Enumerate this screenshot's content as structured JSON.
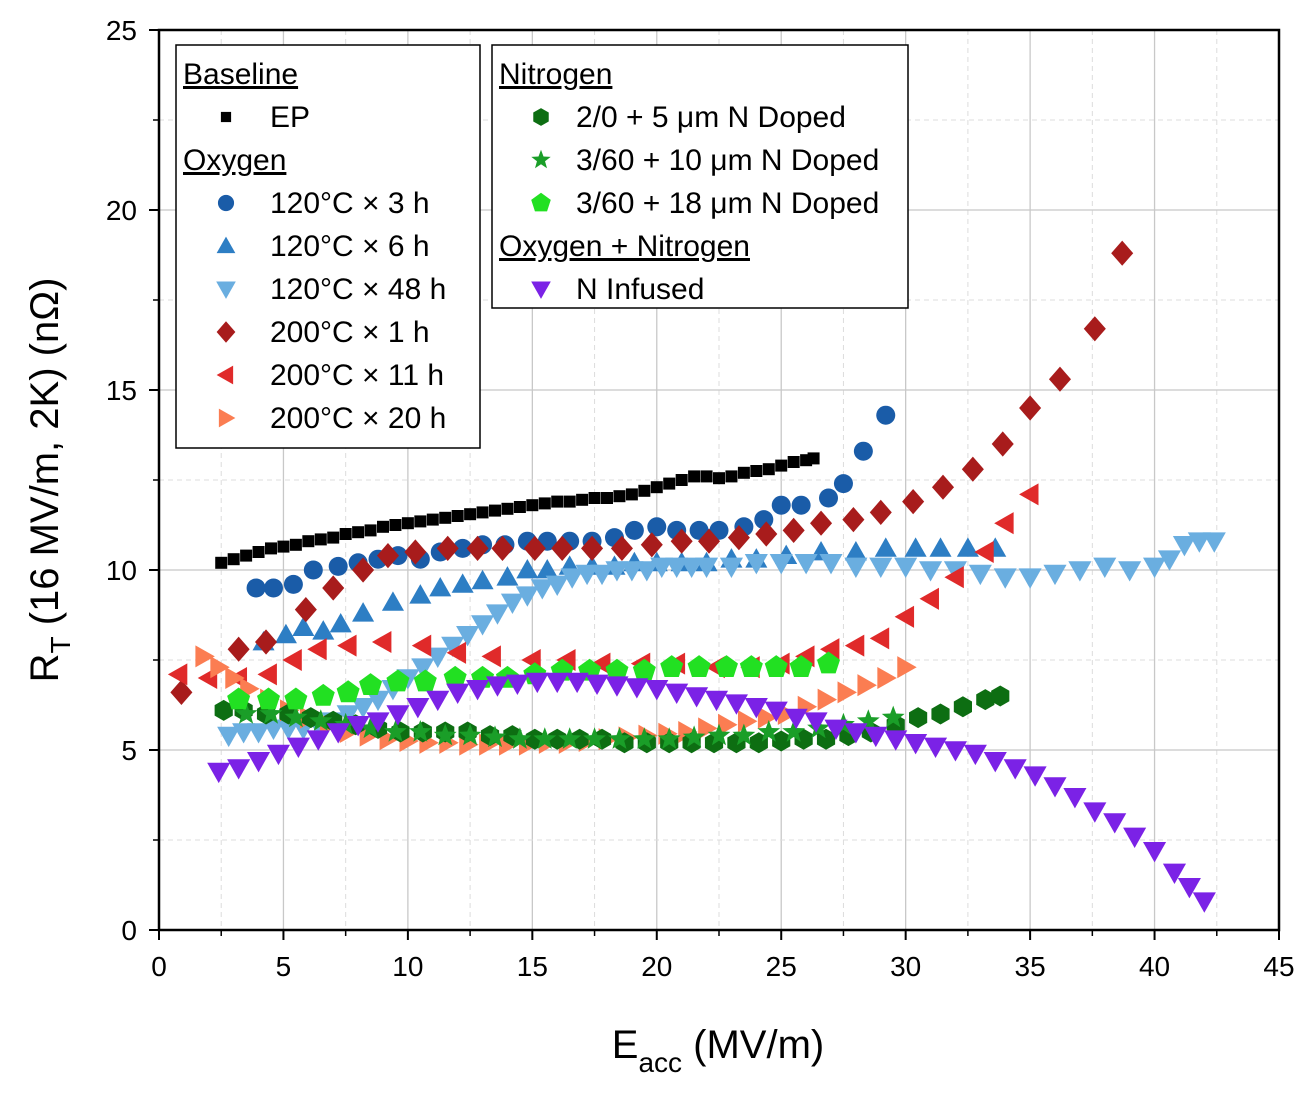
{
  "chart_data": {
    "type": "scatter",
    "xlabel_main": "E",
    "xlabel_sub": "acc",
    "xlabel_unit": " (MV/m)",
    "ylabel_main": "R",
    "ylabel_sub": "T",
    "ylabel_unit": " (16 MV/m, 2K) (nΩ)",
    "xlim": [
      0,
      45
    ],
    "ylim": [
      0,
      25
    ],
    "xticks": [
      0,
      5,
      10,
      15,
      20,
      25,
      30,
      35,
      40,
      45
    ],
    "yticks": [
      0,
      5,
      10,
      15,
      20,
      25
    ],
    "grid": true,
    "legend_groups": [
      {
        "heading": "Baseline",
        "entries": [
          "EP"
        ]
      },
      {
        "heading": "Oxygen",
        "entries": [
          "120°C × 3 h",
          "120°C × 6 h",
          "120°C × 48 h",
          "200°C × 1 h",
          "200°C × 11 h",
          "200°C × 20 h"
        ]
      },
      {
        "heading": "Nitrogen",
        "entries": [
          "2/0 + 5 μm N Doped",
          "3/60 + 10 μm N Doped",
          "3/60 + 18 μm N Doped"
        ]
      },
      {
        "heading": "Oxygen + Nitrogen",
        "entries": [
          "N Infused"
        ]
      }
    ],
    "series": [
      {
        "name": "EP",
        "marker": "square",
        "color": "#000000",
        "x": [
          2.5,
          3,
          3.5,
          4,
          4.5,
          5,
          5.5,
          6,
          6.5,
          7,
          7.5,
          8,
          8.5,
          9,
          9.5,
          10,
          10.5,
          11,
          11.5,
          12,
          12.5,
          13,
          13.5,
          14,
          14.5,
          15,
          15.5,
          16,
          16.5,
          17,
          17.5,
          18,
          18.5,
          19,
          19.5,
          20,
          20.5,
          21,
          21.5,
          22,
          22.5,
          23,
          23.5,
          24,
          24.5,
          25,
          25.5,
          26,
          26.3
        ],
        "y": [
          10.2,
          10.3,
          10.4,
          10.5,
          10.6,
          10.65,
          10.7,
          10.8,
          10.85,
          10.9,
          11.0,
          11.05,
          11.1,
          11.2,
          11.25,
          11.3,
          11.35,
          11.4,
          11.45,
          11.5,
          11.55,
          11.6,
          11.65,
          11.7,
          11.75,
          11.8,
          11.85,
          11.9,
          11.9,
          11.95,
          12.0,
          12.0,
          12.05,
          12.1,
          12.2,
          12.3,
          12.4,
          12.5,
          12.6,
          12.6,
          12.55,
          12.6,
          12.7,
          12.75,
          12.8,
          12.9,
          13.0,
          13.05,
          13.1
        ]
      },
      {
        "name": "120°C × 3 h",
        "marker": "circle",
        "color": "#1a5ca8",
        "x": [
          3.9,
          4.6,
          5.4,
          6.2,
          7.2,
          8,
          8.8,
          9.6,
          10.5,
          11.3,
          12.2,
          13,
          13.9,
          14.8,
          15.6,
          16.5,
          17.4,
          18.3,
          19.1,
          20,
          20.8,
          21.7,
          22.5,
          23.5,
          24.3,
          25,
          25.8,
          26.9,
          27.5,
          28.3,
          29.2
        ],
        "y": [
          9.5,
          9.5,
          9.6,
          10.0,
          10.1,
          10.2,
          10.3,
          10.4,
          10.3,
          10.5,
          10.6,
          10.7,
          10.7,
          10.8,
          10.8,
          10.8,
          10.8,
          10.9,
          11.1,
          11.2,
          11.1,
          11.1,
          11.1,
          11.2,
          11.4,
          11.8,
          11.8,
          12.0,
          12.4,
          13.3,
          14.3
        ]
      },
      {
        "name": "120°C × 6 h",
        "marker": "triangle-up",
        "color": "#2d7ec4",
        "x": [
          4.2,
          5.1,
          5.8,
          6.6,
          7.3,
          8.2,
          9.4,
          10.5,
          11.3,
          12.2,
          13,
          14,
          14.8,
          15.6,
          16.5,
          17.4,
          18.3,
          19.1,
          20,
          21,
          22,
          23,
          24,
          25.2,
          26.6,
          28,
          29.2,
          30.4,
          31.4,
          32.5,
          33.6
        ],
        "y": [
          8.0,
          8.2,
          8.4,
          8.3,
          8.5,
          8.8,
          9.1,
          9.3,
          9.5,
          9.6,
          9.7,
          9.8,
          10.0,
          10.0,
          10.1,
          10.1,
          10.1,
          10.2,
          10.2,
          10.2,
          10.2,
          10.3,
          10.3,
          10.4,
          10.5,
          10.5,
          10.6,
          10.6,
          10.6,
          10.6,
          10.6
        ]
      },
      {
        "name": "120°C × 48 h",
        "marker": "triangle-down",
        "color": "#6aaee0",
        "x": [
          2.8,
          3.4,
          4,
          4.6,
          5.2,
          5.8,
          6.4,
          7,
          7.6,
          8.2,
          8.8,
          9.4,
          10,
          10.6,
          11.2,
          11.8,
          12.4,
          13,
          13.6,
          14.2,
          14.8,
          15.4,
          16,
          16.6,
          17.2,
          17.8,
          18.4,
          19,
          19.6,
          20.2,
          20.8,
          21.4,
          22,
          23,
          24,
          25,
          26,
          27,
          28,
          29,
          30,
          31,
          32,
          33,
          34,
          35,
          36,
          37,
          38,
          39,
          40,
          40.6,
          41.2,
          41.8,
          42.4
        ],
        "y": [
          5.4,
          5.5,
          5.5,
          5.6,
          5.6,
          5.6,
          5.7,
          5.8,
          6.0,
          6.2,
          6.4,
          6.7,
          7.0,
          7.3,
          7.6,
          7.9,
          8.2,
          8.5,
          8.8,
          9.1,
          9.3,
          9.5,
          9.6,
          9.8,
          9.9,
          9.9,
          10.0,
          10.0,
          10.0,
          10.1,
          10.1,
          10.1,
          10.1,
          10.1,
          10.2,
          10.2,
          10.2,
          10.2,
          10.1,
          10.1,
          10.1,
          10.0,
          10.0,
          9.9,
          9.8,
          9.8,
          9.9,
          10.0,
          10.1,
          10.0,
          10.1,
          10.3,
          10.7,
          10.8,
          10.8
        ]
      },
      {
        "name": "200°C × 1 h",
        "marker": "diamond",
        "color": "#a81c1c",
        "x": [
          0.9,
          3.2,
          4.3,
          5.9,
          7,
          8.2,
          9.2,
          10.3,
          11.6,
          12.8,
          13.8,
          15.1,
          16.2,
          17.4,
          18.6,
          19.8,
          21,
          22.1,
          23.3,
          24.4,
          25.5,
          26.6,
          27.9,
          29,
          30.3,
          31.5,
          32.7,
          33.9,
          35,
          36.2,
          37.6,
          38.7
        ],
        "y": [
          6.6,
          7.8,
          8.0,
          8.9,
          9.5,
          10.0,
          10.4,
          10.5,
          10.6,
          10.6,
          10.6,
          10.6,
          10.6,
          10.6,
          10.6,
          10.7,
          10.8,
          10.8,
          10.9,
          11.0,
          11.1,
          11.3,
          11.4,
          11.6,
          11.9,
          12.3,
          12.8,
          13.5,
          14.5,
          15.3,
          16.7,
          18.8
        ]
      },
      {
        "name": "200°C × 11 h",
        "marker": "triangle-left",
        "color": "#e02a2a",
        "x": [
          0.8,
          2,
          3.2,
          4.4,
          5.4,
          6.4,
          7.6,
          9,
          10.6,
          12,
          13.4,
          15,
          16.4,
          17.8,
          19.4,
          20.8,
          22.4,
          23.8,
          25,
          26,
          27,
          28,
          29,
          30,
          31,
          32,
          33.2,
          34,
          35
        ],
        "y": [
          7.1,
          7.0,
          7.0,
          7.1,
          7.5,
          7.8,
          7.9,
          8.0,
          7.9,
          7.7,
          7.6,
          7.5,
          7.5,
          7.4,
          7.4,
          7.4,
          7.3,
          7.3,
          7.4,
          7.6,
          7.8,
          7.9,
          8.1,
          8.7,
          9.2,
          9.8,
          10.5,
          11.3,
          12.1
        ]
      },
      {
        "name": "200°C × 20 h",
        "marker": "triangle-right",
        "color": "#fb7d52",
        "x": [
          1.8,
          2.4,
          3,
          3.6,
          4.4,
          5.2,
          6,
          6.8,
          7.6,
          8.4,
          9.2,
          10,
          10.8,
          11.6,
          12.4,
          13.2,
          14,
          14.8,
          15.6,
          16.4,
          17.2,
          18,
          18.8,
          19.6,
          20.4,
          21.2,
          22,
          22.8,
          23.6,
          24.4,
          25.2,
          26,
          26.8,
          27.6,
          28.4,
          29.2,
          30
        ],
        "y": [
          7.6,
          7.3,
          7.0,
          6.7,
          6.4,
          6.1,
          5.9,
          5.7,
          5.5,
          5.4,
          5.3,
          5.25,
          5.2,
          5.2,
          5.15,
          5.15,
          5.15,
          5.15,
          5.2,
          5.2,
          5.25,
          5.3,
          5.35,
          5.4,
          5.45,
          5.5,
          5.6,
          5.7,
          5.8,
          5.9,
          6.0,
          6.2,
          6.4,
          6.6,
          6.8,
          7.0,
          7.3
        ]
      },
      {
        "name": "2/0 + 5 μm N Doped",
        "marker": "hexagon",
        "color": "#0d6e12",
        "x": [
          2.6,
          3.4,
          4.3,
          5.2,
          6.1,
          7,
          7.9,
          8.8,
          9.7,
          10.6,
          11.5,
          12.4,
          13.3,
          14.2,
          15.1,
          16,
          16.9,
          17.8,
          18.7,
          19.6,
          20.5,
          21.4,
          22.3,
          23.2,
          24.1,
          25,
          25.9,
          26.8,
          27.7,
          28.6,
          29.6,
          30.5,
          31.4,
          32.3,
          33.2,
          33.8
        ],
        "y": [
          6.1,
          6.1,
          6.0,
          6.0,
          5.9,
          5.8,
          5.7,
          5.6,
          5.5,
          5.5,
          5.5,
          5.5,
          5.4,
          5.4,
          5.3,
          5.3,
          5.3,
          5.3,
          5.2,
          5.2,
          5.2,
          5.2,
          5.2,
          5.2,
          5.2,
          5.25,
          5.3,
          5.3,
          5.4,
          5.5,
          5.7,
          5.9,
          6.0,
          6.2,
          6.4,
          6.5
        ]
      },
      {
        "name": "3/60 + 10 μm N Doped",
        "marker": "star",
        "color": "#1a9e28",
        "x": [
          3.5,
          4.5,
          5.5,
          6.5,
          7.5,
          8.5,
          9.5,
          10.5,
          11.5,
          12.5,
          13.5,
          14.5,
          15.5,
          16.5,
          17.5,
          18.5,
          19.5,
          20.5,
          21.5,
          22.5,
          23.5,
          24.5,
          25.5,
          26.5,
          27.5,
          28.5,
          29.5
        ],
        "y": [
          6.0,
          6.0,
          5.9,
          5.8,
          5.7,
          5.6,
          5.5,
          5.5,
          5.4,
          5.4,
          5.35,
          5.3,
          5.3,
          5.3,
          5.3,
          5.3,
          5.3,
          5.3,
          5.35,
          5.4,
          5.4,
          5.5,
          5.5,
          5.6,
          5.7,
          5.8,
          5.9
        ]
      },
      {
        "name": "3/60 + 18 μm N Doped",
        "marker": "pentagon",
        "color": "#22e022",
        "x": [
          3.2,
          4.4,
          5.5,
          6.6,
          7.6,
          8.5,
          9.6,
          10.7,
          11.9,
          13,
          14,
          15.1,
          16.2,
          17.3,
          18.4,
          19.5,
          20.6,
          21.7,
          22.8,
          23.8,
          24.8,
          25.8,
          26.9
        ],
        "y": [
          6.4,
          6.4,
          6.4,
          6.5,
          6.6,
          6.8,
          6.9,
          6.9,
          7.0,
          7.0,
          7.0,
          7.1,
          7.2,
          7.2,
          7.2,
          7.2,
          7.3,
          7.3,
          7.3,
          7.3,
          7.3,
          7.3,
          7.4
        ]
      },
      {
        "name": "N Infused",
        "marker": "triangle-down",
        "color": "#7b22e6",
        "x": [
          2.4,
          3.2,
          4,
          4.8,
          5.6,
          6.4,
          7.2,
          8,
          8.8,
          9.6,
          10.4,
          11.2,
          12,
          12.8,
          13.6,
          14.4,
          15.2,
          16,
          16.8,
          17.6,
          18.4,
          19.2,
          20,
          20.8,
          21.6,
          22.4,
          23.2,
          24,
          24.8,
          25.6,
          26.4,
          27.2,
          28,
          28.8,
          29.6,
          30.4,
          31.2,
          32,
          32.8,
          33.6,
          34.4,
          35.2,
          36,
          36.8,
          37.6,
          38.4,
          39.2,
          40,
          40.8,
          41.4,
          42
        ],
        "y": [
          4.4,
          4.5,
          4.7,
          4.9,
          5.1,
          5.3,
          5.5,
          5.7,
          5.8,
          6.0,
          6.2,
          6.4,
          6.6,
          6.7,
          6.8,
          6.85,
          6.9,
          6.9,
          6.9,
          6.85,
          6.8,
          6.75,
          6.7,
          6.6,
          6.5,
          6.4,
          6.3,
          6.2,
          6.1,
          5.9,
          5.8,
          5.6,
          5.5,
          5.4,
          5.3,
          5.2,
          5.1,
          5.0,
          4.9,
          4.7,
          4.5,
          4.3,
          4.0,
          3.7,
          3.3,
          3.0,
          2.6,
          2.2,
          1.6,
          1.2,
          0.8
        ]
      }
    ]
  }
}
